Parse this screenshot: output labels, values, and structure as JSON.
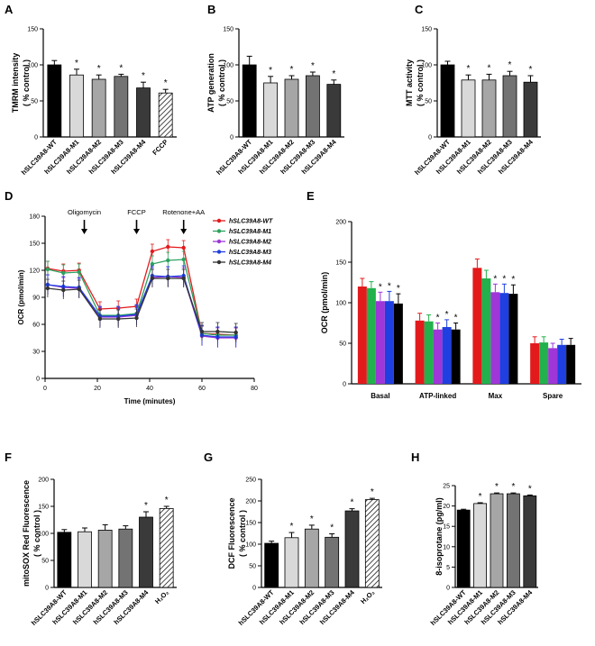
{
  "chart_data": [
    {
      "panel": "A",
      "type": "bar",
      "ylabel_lines": [
        "TMRM intensity",
        "( % control )"
      ],
      "ylim": [
        0,
        150
      ],
      "yticks": [
        0,
        50,
        100,
        150
      ],
      "categories": [
        "hSLC39A8-WT",
        "hSLC39A8-M1",
        "hSLC39A8-M2",
        "hSLC39A8-M3",
        "hSLC39A8-M4",
        "FCCP"
      ],
      "values": [
        100,
        86,
        80,
        84,
        68,
        61
      ],
      "errors": [
        6,
        8,
        6,
        3,
        8,
        5
      ],
      "fills": [
        "#000000",
        "#d9d9d9",
        "#a6a6a6",
        "#737373",
        "#3a3a3a",
        "hatch"
      ],
      "significant": [
        false,
        true,
        true,
        true,
        true,
        true
      ]
    },
    {
      "panel": "B",
      "type": "bar",
      "ylabel_lines": [
        "ATP generation",
        "( % control )"
      ],
      "ylim": [
        0,
        150
      ],
      "yticks": [
        0,
        50,
        100,
        150
      ],
      "categories": [
        "hSLC39A8-WT",
        "hSLC39A8-M1",
        "hSLC39A8-M2",
        "hSLC39A8-M3",
        "hSLC39A8-M4"
      ],
      "values": [
        100,
        75,
        80,
        85,
        73
      ],
      "errors": [
        12,
        9,
        5,
        5,
        6
      ],
      "fills": [
        "#000000",
        "#d9d9d9",
        "#a6a6a6",
        "#737373",
        "#3a3a3a"
      ],
      "significant": [
        false,
        true,
        true,
        true,
        true
      ]
    },
    {
      "panel": "C",
      "type": "bar",
      "ylabel_lines": [
        "MTT activity",
        "( % control )"
      ],
      "ylim": [
        0,
        150
      ],
      "yticks": [
        0,
        50,
        100,
        150
      ],
      "categories": [
        "hSLC39A8-WT",
        "hSLC39A8-M1",
        "hSLC39A8-M2",
        "hSLC39A8-M3",
        "hSLC39A8-M4"
      ],
      "values": [
        100,
        79,
        79,
        85,
        76
      ],
      "errors": [
        5,
        7,
        8,
        6,
        9
      ],
      "fills": [
        "#000000",
        "#d9d9d9",
        "#a6a6a6",
        "#737373",
        "#3a3a3a"
      ],
      "significant": [
        false,
        true,
        true,
        true,
        true
      ]
    },
    {
      "panel": "D",
      "type": "line",
      "xlabel": "Time (minutes)",
      "ylabel": "OCR (pmol/min)",
      "xlim": [
        0,
        80
      ],
      "xticks": [
        0,
        20,
        40,
        60,
        80
      ],
      "ylim": [
        0,
        180
      ],
      "yticks": [
        0,
        30,
        60,
        90,
        120,
        150,
        180
      ],
      "x": [
        1,
        7,
        13,
        21,
        28,
        35,
        41,
        47,
        53,
        60,
        66,
        73
      ],
      "annotations": [
        {
          "label": "Oligomycin",
          "x": 15
        },
        {
          "label": "FCCP",
          "x": 35
        },
        {
          "label": "Rotenone+AA",
          "x": 53
        }
      ],
      "series": [
        {
          "name": "hSLC39A8-WT",
          "color": "#e31a1c",
          "values": [
            122,
            119,
            120,
            77,
            78,
            80,
            141,
            146,
            145,
            50,
            49,
            48
          ],
          "error": 8
        },
        {
          "name": "hSLC39A8-M1",
          "color": "#2ca25f",
          "values": [
            121,
            117,
            118,
            70,
            70,
            72,
            127,
            131,
            132,
            50,
            48,
            48
          ],
          "error": 9
        },
        {
          "name": "hSLC39A8-M2",
          "color": "#9e36d8",
          "values": [
            104,
            101,
            100,
            68,
            68,
            70,
            112,
            113,
            112,
            47,
            45,
            45
          ],
          "error": 11
        },
        {
          "name": "hSLC39A8-M3",
          "color": "#1f3fe0",
          "values": [
            104,
            102,
            101,
            69,
            69,
            71,
            114,
            113,
            114,
            48,
            46,
            46
          ],
          "error": 11
        },
        {
          "name": "hSLC39A8-M4",
          "color": "#333333",
          "values": [
            100,
            98,
            99,
            66,
            66,
            67,
            111,
            111,
            111,
            52,
            52,
            51
          ],
          "error": 10
        }
      ],
      "legend": [
        "hSLC39A8-WT",
        "hSLC39A8-M1",
        "hSLC39A8-M2",
        "hSLC39A8-M3",
        "hSLC39A8-M4"
      ]
    },
    {
      "panel": "E",
      "type": "bar",
      "ylabel": "OCR (pmol/min)",
      "ylim": [
        0,
        200
      ],
      "yticks": [
        0,
        50,
        100,
        150,
        200
      ],
      "categories": [
        "Basal",
        "ATP-linked",
        "Max",
        "Spare"
      ],
      "series": [
        {
          "name": "hSLC39A8-WT",
          "color": "#e31a1c",
          "values": [
            120,
            78,
            143,
            50
          ],
          "errors": [
            10,
            9,
            11,
            8
          ],
          "significant": [
            false,
            false,
            false,
            false
          ]
        },
        {
          "name": "hSLC39A8-M1",
          "color": "#22b14c",
          "values": [
            118,
            77,
            130,
            51
          ],
          "errors": [
            8,
            8,
            10,
            7
          ],
          "significant": [
            false,
            false,
            false,
            false
          ]
        },
        {
          "name": "hSLC39A8-M2",
          "color": "#9e36d8",
          "values": [
            102,
            67,
            113,
            44
          ],
          "errors": [
            11,
            8,
            10,
            6
          ],
          "significant": [
            true,
            true,
            true,
            false
          ]
        },
        {
          "name": "hSLC39A8-M3",
          "color": "#1f3fe0",
          "values": [
            102,
            70,
            112,
            48
          ],
          "errors": [
            12,
            9,
            11,
            7
          ],
          "significant": [
            true,
            true,
            true,
            false
          ]
        },
        {
          "name": "hSLC39A8-M4",
          "color": "#000000",
          "values": [
            99,
            67,
            111,
            48
          ],
          "errors": [
            12,
            8,
            11,
            8
          ],
          "significant": [
            true,
            true,
            true,
            false
          ]
        }
      ]
    },
    {
      "panel": "F",
      "type": "bar",
      "ylabel_lines": [
        "mitoSOX Red Fluorescence",
        "( % control )"
      ],
      "ylim": [
        0,
        200
      ],
      "yticks": [
        0,
        50,
        100,
        150,
        200
      ],
      "categories": [
        "hSLC39A8-WT",
        "hSLC39A8-M1",
        "hSLC39A8-M2",
        "hSLC39A8-M3",
        "hSLC39A8-M4",
        "H₂O₂"
      ],
      "values": [
        102,
        103,
        106,
        108,
        130,
        146
      ],
      "errors": [
        5,
        7,
        10,
        6,
        10,
        4
      ],
      "fills": [
        "#000000",
        "#d9d9d9",
        "#a6a6a6",
        "#737373",
        "#3a3a3a",
        "hatch"
      ],
      "significant": [
        false,
        false,
        false,
        false,
        true,
        true
      ]
    },
    {
      "panel": "G",
      "type": "bar",
      "ylabel_lines": [
        "DCF Fluorescence",
        "( % control )"
      ],
      "ylim": [
        0,
        250
      ],
      "yticks": [
        0,
        50,
        100,
        150,
        200,
        250
      ],
      "categories": [
        "hSLC39A8-WT",
        "hSLC39A8-M1",
        "hSLC39A8-M2",
        "hSLC39A8-M3",
        "hSLC39A8-M4",
        "H₂O₂"
      ],
      "values": [
        102,
        115,
        135,
        116,
        177,
        203
      ],
      "errors": [
        5,
        12,
        9,
        8,
        5,
        3
      ],
      "fills": [
        "#000000",
        "#d9d9d9",
        "#a6a6a6",
        "#737373",
        "#3a3a3a",
        "hatch"
      ],
      "significant": [
        false,
        true,
        true,
        true,
        true,
        true
      ]
    },
    {
      "panel": "H",
      "type": "bar",
      "ylabel": "8-isoprotane (pg/ml)",
      "ylim": [
        0,
        25
      ],
      "yticks": [
        0,
        5,
        10,
        15,
        20,
        25
      ],
      "categories": [
        "hSLC39A8-WT",
        "hSLC39A8-M1",
        "hSLC39A8-M2",
        "hSLC39A8-M3",
        "hSLC39A8-M4"
      ],
      "values": [
        19,
        20.6,
        23,
        23,
        22.5
      ],
      "errors": [
        0.2,
        0.2,
        0.2,
        0.2,
        0.2
      ],
      "fills": [
        "#000000",
        "#d9d9d9",
        "#a6a6a6",
        "#737373",
        "#3a3a3a"
      ],
      "significant": [
        false,
        true,
        true,
        true,
        true
      ]
    }
  ]
}
